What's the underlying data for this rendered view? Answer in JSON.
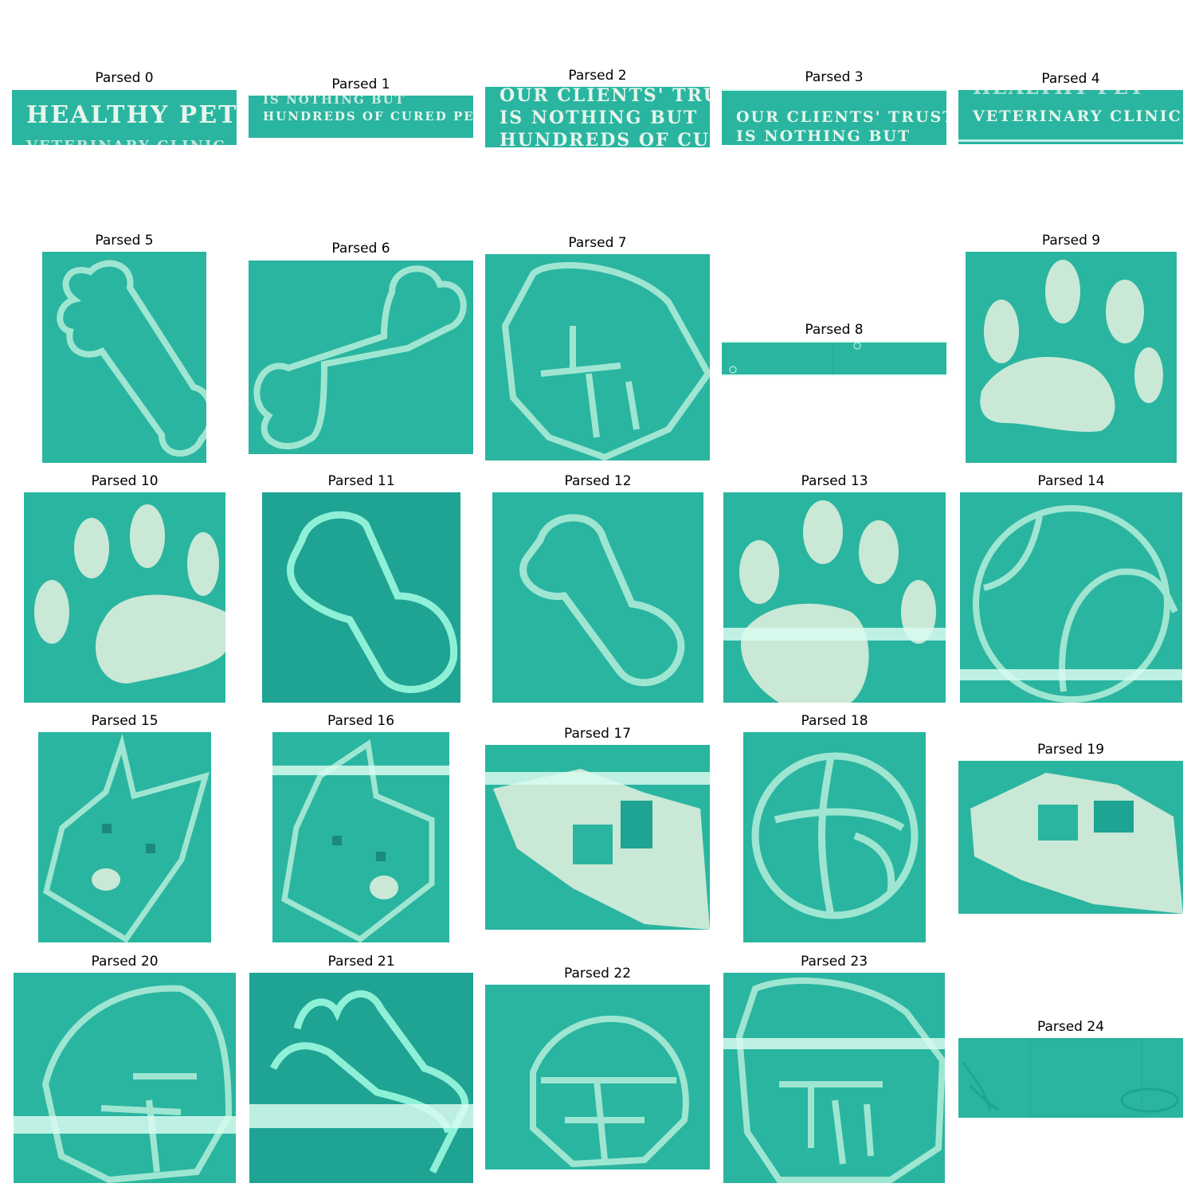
{
  "captions": [
    "Parsed 0",
    "Parsed 1",
    "Parsed 2",
    "Parsed 3",
    "Parsed 4",
    "Parsed 5",
    "Parsed 6",
    "Parsed 7",
    "Parsed 8",
    "Parsed 9",
    "Parsed 10",
    "Parsed 11",
    "Parsed 12",
    "Parsed 13",
    "Parsed 14",
    "Parsed 15",
    "Parsed 16",
    "Parsed 17",
    "Parsed 18",
    "Parsed 19",
    "Parsed 20",
    "Parsed 21",
    "Parsed 22",
    "Parsed 23",
    "Parsed 24"
  ],
  "crop_text": {
    "p0_line1": "HEALTHY PET",
    "p0_line2": "VETERINARY CLINIC",
    "p1_line1": "IS NOTHING BUT",
    "p1_line2": "HUNDREDS OF CURED PETS.",
    "p2_line1": "OUR CLIENTS' TRUS",
    "p2_line2": "IS NOTHING BUT",
    "p2_line3": "HUNDREDS OF CUF",
    "p3_line1": "OUR CLIENTS' TRUST",
    "p3_line2": "IS NOTHING BUT",
    "p4_line1": "HEALTHY PET",
    "p4_line2": "VETERINARY CLINIC"
  },
  "colors": {
    "teal": "#2ab5a0",
    "teal_dark": "#1fa393",
    "outline": "#9fe6d2",
    "paw_fill": "#c9e8d6",
    "band": "#d8fbf0",
    "text": "#e6f5ec"
  }
}
